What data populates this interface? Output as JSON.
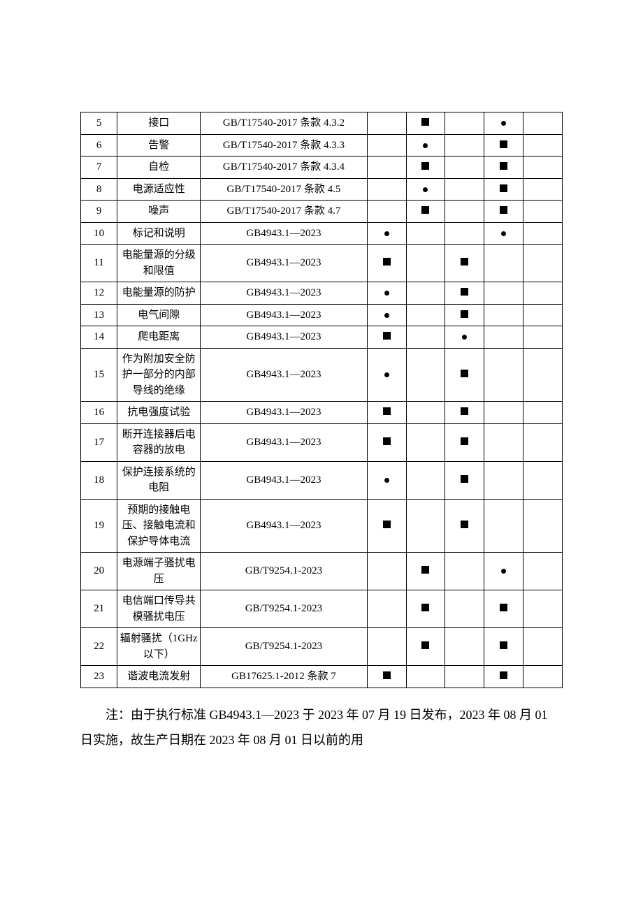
{
  "table": {
    "columns": {
      "num_width": "7%",
      "name_width": "16%",
      "std_width": "32%",
      "mark_width": "7.5%"
    },
    "border_color": "#000000",
    "background_color": "#ffffff",
    "text_color": "#000000",
    "fontsize": 15,
    "mark_square": {
      "size": 11,
      "color": "#000000"
    },
    "mark_dot": {
      "size": 7,
      "color": "#000000"
    },
    "rows": [
      {
        "num": "5",
        "name": "接口",
        "std": "GB/T17540-2017 条款 4.3.2",
        "marks": [
          "",
          "square",
          "",
          "dot",
          ""
        ]
      },
      {
        "num": "6",
        "name": "告警",
        "std": "GB/T17540-2017 条款 4.3.3",
        "marks": [
          "",
          "dot",
          "",
          "square",
          ""
        ]
      },
      {
        "num": "7",
        "name": "自检",
        "std": "GB/T17540-2017 条款 4.3.4",
        "marks": [
          "",
          "square",
          "",
          "square",
          ""
        ]
      },
      {
        "num": "8",
        "name": "电源适应性",
        "std": "GB/T17540-2017 条款 4.5",
        "marks": [
          "",
          "dot",
          "",
          "square",
          ""
        ]
      },
      {
        "num": "9",
        "name": "噪声",
        "std": "GB/T17540-2017 条款 4.7",
        "marks": [
          "",
          "square",
          "",
          "square",
          ""
        ]
      },
      {
        "num": "10",
        "name": "标记和说明",
        "std": "GB4943.1—2023",
        "marks": [
          "dot",
          "",
          "",
          "dot",
          ""
        ]
      },
      {
        "num": "11",
        "name": "电能量源的分级和限值",
        "std": "GB4943.1—2023",
        "marks": [
          "square",
          "",
          "square",
          "",
          ""
        ]
      },
      {
        "num": "12",
        "name": "电能量源的防护",
        "std": "GB4943.1—2023",
        "marks": [
          "dot",
          "",
          "square",
          "",
          ""
        ]
      },
      {
        "num": "13",
        "name": "电气间隙",
        "std": "GB4943.1—2023",
        "marks": [
          "dot",
          "",
          "square",
          "",
          ""
        ]
      },
      {
        "num": "14",
        "name": "爬电距离",
        "std": "GB4943.1—2023",
        "marks": [
          "square",
          "",
          "dot",
          "",
          ""
        ]
      },
      {
        "num": "15",
        "name": "作为附加安全防护一部分的内部导线的绝缘",
        "std": "GB4943.1—2023",
        "marks": [
          "dot",
          "",
          "square",
          "",
          ""
        ]
      },
      {
        "num": "16",
        "name": "抗电强度试验",
        "std": "GB4943.1—2023",
        "marks": [
          "square",
          "",
          "square",
          "",
          ""
        ]
      },
      {
        "num": "17",
        "name": "断开连接器后电容器的放电",
        "std": "GB4943.1—2023",
        "marks": [
          "square",
          "",
          "square",
          "",
          ""
        ]
      },
      {
        "num": "18",
        "name": "保护连接系统的电阻",
        "std": "GB4943.1—2023",
        "marks": [
          "dot",
          "",
          "square",
          "",
          ""
        ]
      },
      {
        "num": "19",
        "name": "预期的接触电压、接触电流和保护导体电流",
        "std": "GB4943.1—2023",
        "marks": [
          "square",
          "",
          "square",
          "",
          ""
        ]
      },
      {
        "num": "20",
        "name": "电源端子骚扰电压",
        "std": "GB/T9254.1-2023",
        "marks": [
          "",
          "square",
          "",
          "dot",
          ""
        ]
      },
      {
        "num": "21",
        "name": "电信端口传导共模骚扰电压",
        "std": "GB/T9254.1-2023",
        "marks": [
          "",
          "square",
          "",
          "square",
          ""
        ]
      },
      {
        "num": "22",
        "name": "辐射骚扰（1GHz 以下）",
        "std": "GB/T9254.1-2023",
        "marks": [
          "",
          "square",
          "",
          "square",
          ""
        ]
      },
      {
        "num": "23",
        "name": "谐波电流发射",
        "std": "GB17625.1-2012 条款 7",
        "marks": [
          "square",
          "",
          "",
          "square",
          ""
        ]
      }
    ]
  },
  "note": {
    "text": "注：由于执行标准 GB4943.1—2023 于 2023 年 07 月 19 日发布，2023 年 08 月 01 日实施，故生产日期在 2023 年 08 月 01 日以前的用",
    "fontsize": 18,
    "line_height": 2.0,
    "text_indent": "2em"
  }
}
